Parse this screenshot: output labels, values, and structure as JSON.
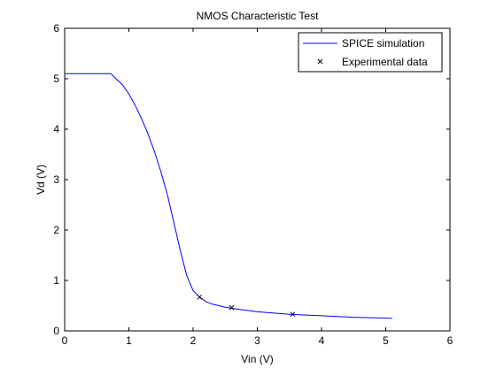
{
  "chart_data": {
    "type": "line",
    "title": "NMOS Characteristic Test",
    "xlabel": "Vin (V)",
    "ylabel": "Vd (V)",
    "xlim": [
      0,
      6
    ],
    "ylim": [
      0,
      6
    ],
    "xticks": [
      "0",
      "1",
      "2",
      "3",
      "4",
      "5",
      "6"
    ],
    "yticks": [
      "0",
      "1",
      "2",
      "3",
      "4",
      "5",
      "6"
    ],
    "grid": false,
    "legend_position": "top-right",
    "series": [
      {
        "name": "SPICE simulation",
        "style": "line",
        "color": "#0000ff",
        "x": [
          0,
          0.72,
          0.8,
          0.9,
          1.0,
          1.1,
          1.2,
          1.3,
          1.4,
          1.5,
          1.6,
          1.7,
          1.8,
          1.9,
          2.0,
          2.1,
          2.2,
          2.3,
          2.5,
          2.7,
          3.0,
          3.5,
          4.0,
          4.5,
          5.1
        ],
        "values": [
          5.1,
          5.1,
          5.0,
          4.88,
          4.7,
          4.47,
          4.2,
          3.9,
          3.55,
          3.15,
          2.7,
          2.15,
          1.6,
          1.1,
          0.8,
          0.67,
          0.58,
          0.53,
          0.47,
          0.43,
          0.38,
          0.33,
          0.3,
          0.27,
          0.25
        ]
      },
      {
        "name": "Experimental data",
        "style": "marker",
        "marker": "x",
        "color": "#000000",
        "x": [
          2.1,
          2.6,
          3.55
        ],
        "values": [
          0.67,
          0.46,
          0.33
        ]
      }
    ]
  }
}
